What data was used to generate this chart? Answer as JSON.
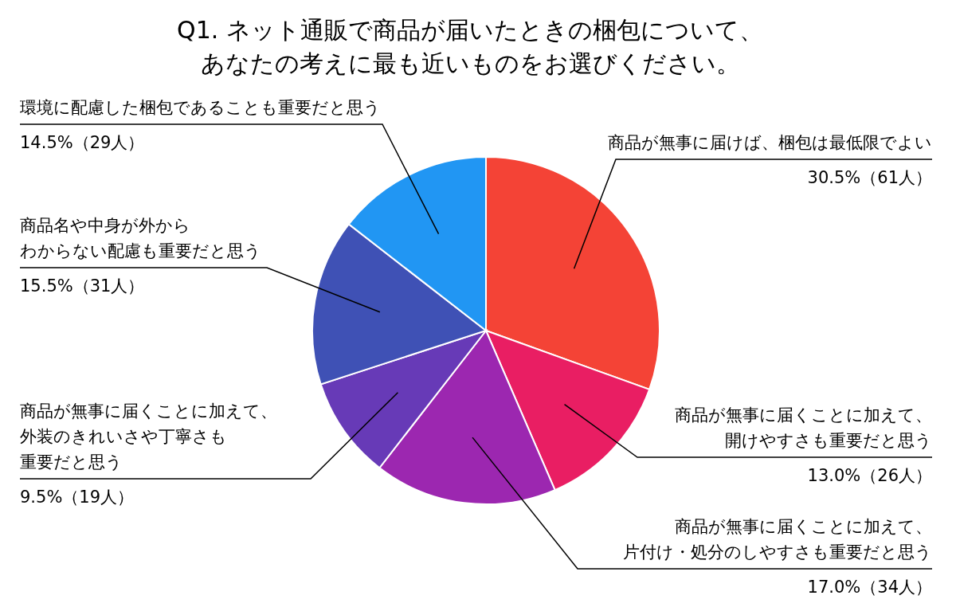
{
  "chart_data": {
    "type": "pie",
    "title": "Q1. ネット通販で商品が届いたときの梱包について、あなたの考えに最も近いものをお選びください。",
    "categories": [
      "商品が無事に届けば、梱包は最低限でよい",
      "商品が無事に届くことに加えて、開けやすさも重要だと思う",
      "商品が無事に届くことに加えて、片付け・処分のしやすさも重要だと思う",
      "商品が無事に届くことに加えて、外装のきれいさや丁寧さも重要だと思う",
      "商品名や中身が外からわからない配慮も重要だと思う",
      "環境に配慮した梱包であることも重要だと思う"
    ],
    "values": [
      30.5,
      13.0,
      17.0,
      9.5,
      15.5,
      14.5
    ],
    "value_labels": [
      "30.5%（61人）",
      "13.0%（26人）",
      "17.0%（34人）",
      "9.5%（19人）",
      "15.5%（31人）",
      "14.5%（29人）"
    ],
    "colors": [
      "#f44336",
      "#e91e63",
      "#9c27b0",
      "#673ab7",
      "#3f51b5",
      "#2196f3"
    ],
    "legend": false
  }
}
